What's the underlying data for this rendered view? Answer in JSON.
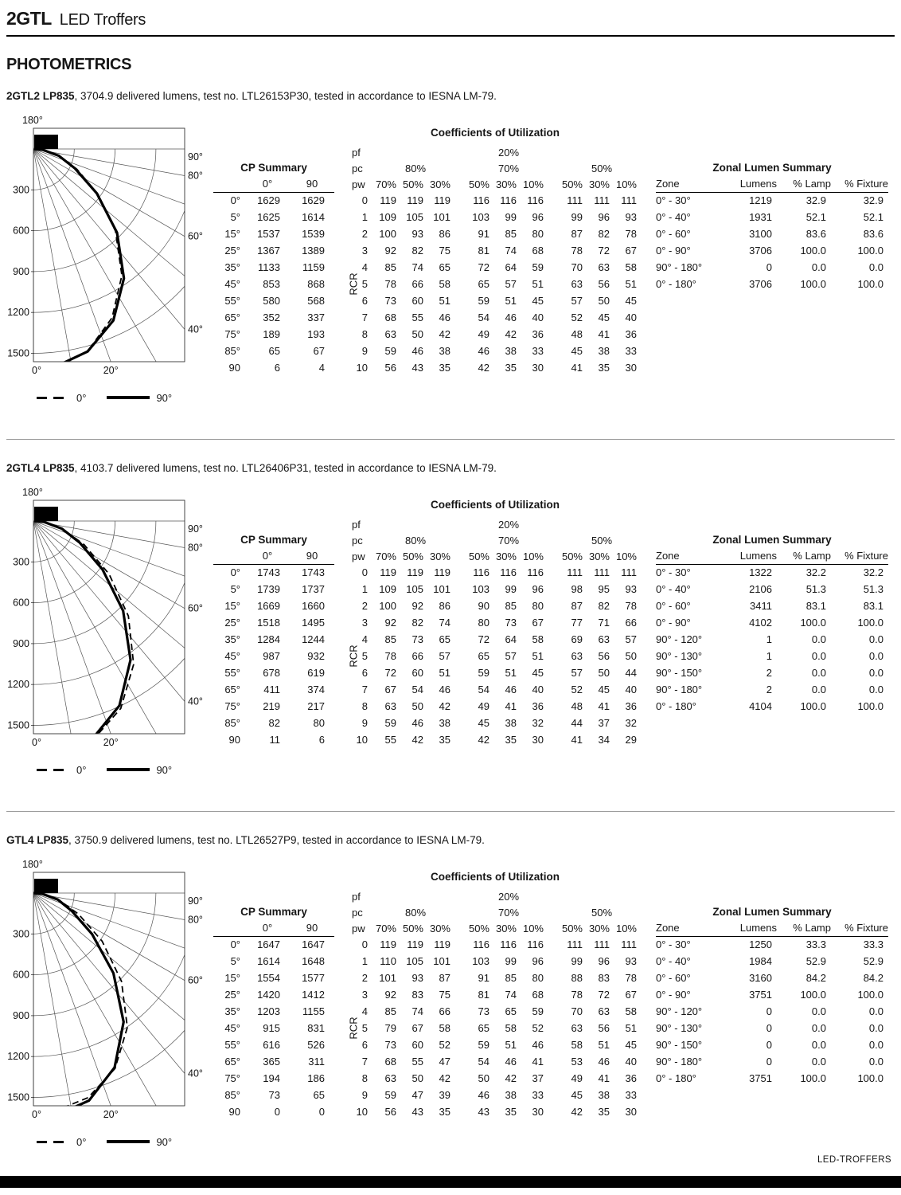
{
  "header": {
    "brand": "2GTL",
    "product": "LED Troffers"
  },
  "page_title": "PHOTOMETRICS",
  "footer": {
    "label": "LED-TROFFERS"
  },
  "polar_common": {
    "top_label": "180°",
    "radial_ticks": [
      "300",
      "600",
      "900",
      "1200",
      "1500"
    ],
    "right_labels": [
      {
        "angle": 90,
        "label": "90°"
      },
      {
        "angle": 80,
        "label": "80°"
      },
      {
        "angle": 60,
        "label": "60°"
      },
      {
        "angle": 40,
        "label": "40°"
      }
    ],
    "bottom_labels": [
      {
        "angle": 0,
        "label": "0°"
      },
      {
        "angle": 20,
        "label": "20°"
      }
    ],
    "legend": {
      "dashed_label": "0°",
      "solid_label": "90°"
    }
  },
  "cp_header": {
    "title": "CP Summary",
    "cols": [
      "0°",
      "90"
    ]
  },
  "cou_header": {
    "title": "Coefficients of Utilization",
    "pf_label": "pf",
    "pf_value": "20%",
    "pc_label": "pc",
    "pc_groups": [
      "80%",
      "70%",
      "50%"
    ],
    "pw_label": "pw",
    "pw_cols": [
      "70%",
      "50%",
      "30%",
      "50%",
      "30%",
      "10%",
      "50%",
      "30%",
      "10%"
    ],
    "rcr_label": "RCR"
  },
  "zonal_header": {
    "title": "Zonal Lumen Summary",
    "cols": [
      "Zone",
      "Lumens",
      "% Lamp",
      "% Fixture"
    ]
  },
  "sections": [
    {
      "name": "2GTL2 LP835",
      "desc": ", 3704.9 delivered lumens, test no. LTL26153P30,  tested in accordance to IESNA LM-79.",
      "cp_rows": [
        [
          "0°",
          "1629",
          "1629"
        ],
        [
          "5°",
          "1625",
          "1614"
        ],
        [
          "15°",
          "1537",
          "1539"
        ],
        [
          "25°",
          "1367",
          "1389"
        ],
        [
          "35°",
          "1133",
          "1159"
        ],
        [
          "45°",
          "853",
          "868"
        ],
        [
          "55°",
          "580",
          "568"
        ],
        [
          "65°",
          "352",
          "337"
        ],
        [
          "75°",
          "189",
          "193"
        ],
        [
          "85°",
          "65",
          "67"
        ],
        [
          "90",
          "6",
          "4"
        ]
      ],
      "cou_rows": [
        [
          "0",
          "119",
          "119",
          "119",
          "116",
          "116",
          "116",
          "111",
          "111",
          "111"
        ],
        [
          "1",
          "109",
          "105",
          "101",
          "103",
          "99",
          "96",
          "99",
          "96",
          "93"
        ],
        [
          "2",
          "100",
          "93",
          "86",
          "91",
          "85",
          "80",
          "87",
          "82",
          "78"
        ],
        [
          "3",
          "92",
          "82",
          "75",
          "81",
          "74",
          "68",
          "78",
          "72",
          "67"
        ],
        [
          "4",
          "85",
          "74",
          "65",
          "72",
          "64",
          "59",
          "70",
          "63",
          "58"
        ],
        [
          "5",
          "78",
          "66",
          "58",
          "65",
          "57",
          "51",
          "63",
          "56",
          "51"
        ],
        [
          "6",
          "73",
          "60",
          "51",
          "59",
          "51",
          "45",
          "57",
          "50",
          "45"
        ],
        [
          "7",
          "68",
          "55",
          "46",
          "54",
          "46",
          "40",
          "52",
          "45",
          "40"
        ],
        [
          "8",
          "63",
          "50",
          "42",
          "49",
          "42",
          "36",
          "48",
          "41",
          "36"
        ],
        [
          "9",
          "59",
          "46",
          "38",
          "46",
          "38",
          "33",
          "45",
          "38",
          "33"
        ],
        [
          "10",
          "56",
          "43",
          "35",
          "42",
          "35",
          "30",
          "41",
          "35",
          "30"
        ]
      ],
      "zonal_rows": [
        [
          "0° - 30°",
          "1219",
          "32.9",
          "32.9"
        ],
        [
          "0° - 40°",
          "1931",
          "52.1",
          "52.1"
        ],
        [
          "0° - 60°",
          "3100",
          "83.6",
          "83.6"
        ],
        [
          "0° - 90°",
          "3706",
          "100.0",
          "100.0"
        ],
        [
          "90° - 180°",
          "0",
          "0.0",
          "0.0"
        ],
        [
          "0° - 180°",
          "3706",
          "100.0",
          "100.0"
        ]
      ]
    },
    {
      "name": "2GTL4 LP835",
      "desc": ", 4103.7 delivered lumens, test no. LTL26406P31,  tested in accordance to IESNA LM-79.",
      "cp_rows": [
        [
          "0°",
          "1743",
          "1743"
        ],
        [
          "5°",
          "1739",
          "1737"
        ],
        [
          "15°",
          "1669",
          "1660"
        ],
        [
          "25°",
          "1518",
          "1495"
        ],
        [
          "35°",
          "1284",
          "1244"
        ],
        [
          "45°",
          "987",
          "932"
        ],
        [
          "55°",
          "678",
          "619"
        ],
        [
          "65°",
          "411",
          "374"
        ],
        [
          "75°",
          "219",
          "217"
        ],
        [
          "85°",
          "82",
          "80"
        ],
        [
          "90",
          "11",
          "6"
        ]
      ],
      "cou_rows": [
        [
          "0",
          "119",
          "119",
          "119",
          "116",
          "116",
          "116",
          "111",
          "111",
          "111"
        ],
        [
          "1",
          "109",
          "105",
          "101",
          "103",
          "99",
          "96",
          "98",
          "95",
          "93"
        ],
        [
          "2",
          "100",
          "92",
          "86",
          "90",
          "85",
          "80",
          "87",
          "82",
          "78"
        ],
        [
          "3",
          "92",
          "82",
          "74",
          "80",
          "73",
          "67",
          "77",
          "71",
          "66"
        ],
        [
          "4",
          "85",
          "73",
          "65",
          "72",
          "64",
          "58",
          "69",
          "63",
          "57"
        ],
        [
          "5",
          "78",
          "66",
          "57",
          "65",
          "57",
          "51",
          "63",
          "56",
          "50"
        ],
        [
          "6",
          "72",
          "60",
          "51",
          "59",
          "51",
          "45",
          "57",
          "50",
          "44"
        ],
        [
          "7",
          "67",
          "54",
          "46",
          "54",
          "46",
          "40",
          "52",
          "45",
          "40"
        ],
        [
          "8",
          "63",
          "50",
          "42",
          "49",
          "41",
          "36",
          "48",
          "41",
          "36"
        ],
        [
          "9",
          "59",
          "46",
          "38",
          "45",
          "38",
          "32",
          "44",
          "37",
          "32"
        ],
        [
          "10",
          "55",
          "42",
          "35",
          "42",
          "35",
          "30",
          "41",
          "34",
          "29"
        ]
      ],
      "zonal_rows": [
        [
          "0° - 30°",
          "1322",
          "32.2",
          "32.2"
        ],
        [
          "0° - 40°",
          "2106",
          "51.3",
          "51.3"
        ],
        [
          "0° - 60°",
          "3411",
          "83.1",
          "83.1"
        ],
        [
          "0° - 90°",
          "4102",
          "100.0",
          "100.0"
        ],
        [
          "90° - 120°",
          "1",
          "0.0",
          "0.0"
        ],
        [
          "90° - 130°",
          "1",
          "0.0",
          "0.0"
        ],
        [
          "90° - 150°",
          "2",
          "0.0",
          "0.0"
        ],
        [
          "90° - 180°",
          "2",
          "0.0",
          "0.0"
        ],
        [
          "0° - 180°",
          "4104",
          "100.0",
          "100.0"
        ]
      ]
    },
    {
      "name": "GTL4 LP835",
      "desc": ", 3750.9 delivered lumens, test no. LTL26527P9,  tested in accordance to IESNA LM-79.",
      "cp_rows": [
        [
          "0°",
          "1647",
          "1647"
        ],
        [
          "5°",
          "1614",
          "1648"
        ],
        [
          "15°",
          "1554",
          "1577"
        ],
        [
          "25°",
          "1420",
          "1412"
        ],
        [
          "35°",
          "1203",
          "1155"
        ],
        [
          "45°",
          "915",
          "831"
        ],
        [
          "55°",
          "616",
          "526"
        ],
        [
          "65°",
          "365",
          "311"
        ],
        [
          "75°",
          "194",
          "186"
        ],
        [
          "85°",
          "73",
          "65"
        ],
        [
          "90",
          "0",
          "0"
        ]
      ],
      "cou_rows": [
        [
          "0",
          "119",
          "119",
          "119",
          "116",
          "116",
          "116",
          "111",
          "111",
          "111"
        ],
        [
          "1",
          "110",
          "105",
          "101",
          "103",
          "99",
          "96",
          "99",
          "96",
          "93"
        ],
        [
          "2",
          "101",
          "93",
          "87",
          "91",
          "85",
          "80",
          "88",
          "83",
          "78"
        ],
        [
          "3",
          "92",
          "83",
          "75",
          "81",
          "74",
          "68",
          "78",
          "72",
          "67"
        ],
        [
          "4",
          "85",
          "74",
          "66",
          "73",
          "65",
          "59",
          "70",
          "63",
          "58"
        ],
        [
          "5",
          "79",
          "67",
          "58",
          "65",
          "58",
          "52",
          "63",
          "56",
          "51"
        ],
        [
          "6",
          "73",
          "60",
          "52",
          "59",
          "51",
          "46",
          "58",
          "51",
          "45"
        ],
        [
          "7",
          "68",
          "55",
          "47",
          "54",
          "46",
          "41",
          "53",
          "46",
          "40"
        ],
        [
          "8",
          "63",
          "50",
          "42",
          "50",
          "42",
          "37",
          "49",
          "41",
          "36"
        ],
        [
          "9",
          "59",
          "47",
          "39",
          "46",
          "38",
          "33",
          "45",
          "38",
          "33"
        ],
        [
          "10",
          "56",
          "43",
          "35",
          "43",
          "35",
          "30",
          "42",
          "35",
          "30"
        ]
      ],
      "zonal_rows": [
        [
          "0° - 30°",
          "1250",
          "33.3",
          "33.3"
        ],
        [
          "0° - 40°",
          "1984",
          "52.9",
          "52.9"
        ],
        [
          "0° - 60°",
          "3160",
          "84.2",
          "84.2"
        ],
        [
          "0° - 90°",
          "3751",
          "100.0",
          "100.0"
        ],
        [
          "90° - 120°",
          "0",
          "0.0",
          "0.0"
        ],
        [
          "90° - 130°",
          "0",
          "0.0",
          "0.0"
        ],
        [
          "90° - 150°",
          "0",
          "0.0",
          "0.0"
        ],
        [
          "90° - 180°",
          "0",
          "0.0",
          "0.0"
        ],
        [
          "0° - 180°",
          "3751",
          "100.0",
          "100.0"
        ]
      ]
    }
  ]
}
